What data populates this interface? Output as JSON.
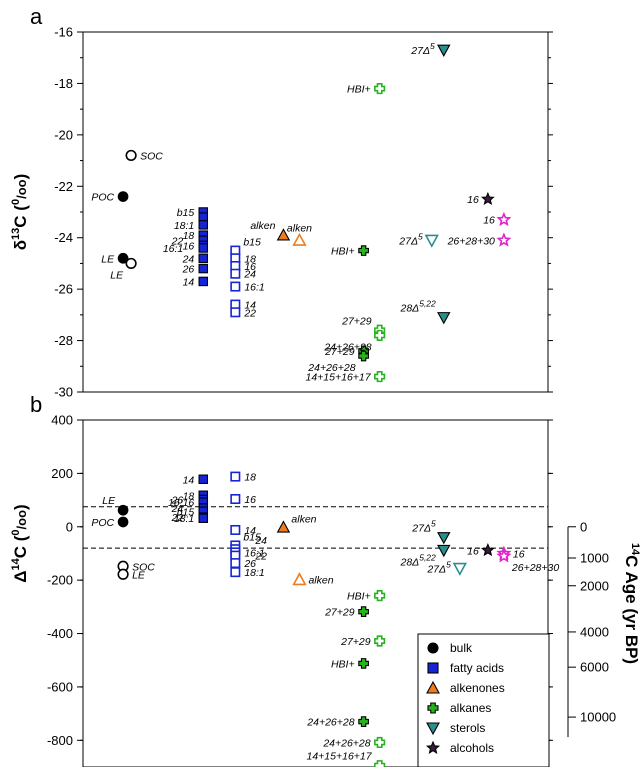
{
  "panel_letters": [
    "a",
    "b"
  ],
  "legend": [
    {
      "label": "bulk",
      "marker": "circle",
      "color": "#000000"
    },
    {
      "label": "fatty acids",
      "marker": "square",
      "color": "#1524d6"
    },
    {
      "label": "alkenones",
      "marker": "triangle-up",
      "color": "#f07b1a"
    },
    {
      "label": "alkanes",
      "marker": "cross",
      "color": "#27b21e"
    },
    {
      "label": "sterols",
      "marker": "triangle-down",
      "color": "#2a8f8c"
    },
    {
      "label": "alcohols",
      "marker": "star",
      "color": "#3b1b3f"
    }
  ],
  "chart_data": [
    {
      "type": "scatter",
      "panel": "a",
      "ylabel_main": "δ",
      "ylabel_sup": "13",
      "ylabel_rest": "C (",
      "ylabel_unit_sup": "0",
      "ylabel_unit_sub": "/oo",
      "ylabel_end": ")",
      "ylim": [
        -30,
        -16
      ],
      "yticks": [
        -30,
        -28,
        -26,
        -24,
        -22,
        -20,
        -18,
        -16
      ],
      "points": [
        {
          "x": 1.0,
          "y": -22.4,
          "marker": "circle",
          "filled": true,
          "color": "#000000",
          "label": "POC",
          "lpos": "left"
        },
        {
          "x": 1.0,
          "y": -24.8,
          "marker": "circle",
          "filled": true,
          "color": "#000000",
          "label": "LE",
          "lpos": "left"
        },
        {
          "x": 1.1,
          "y": -20.8,
          "marker": "circle",
          "filled": false,
          "color": "#000000",
          "label": "SOC",
          "lpos": "right"
        },
        {
          "x": 1.1,
          "y": -25.0,
          "marker": "circle",
          "filled": false,
          "color": "#000000",
          "label": "LE",
          "lpos": "left-below"
        },
        {
          "x": 2.0,
          "y": -23.0,
          "marker": "square",
          "filled": true,
          "color": "#1524d6",
          "label": "b15",
          "lpos": "left"
        },
        {
          "x": 2.0,
          "y": -23.2,
          "marker": "square",
          "filled": true,
          "color": "#1524d6",
          "label": "",
          "lpos": "left"
        },
        {
          "x": 2.0,
          "y": -23.5,
          "marker": "square",
          "filled": true,
          "color": "#1524d6",
          "label": "18:1",
          "lpos": "left"
        },
        {
          "x": 2.0,
          "y": -23.9,
          "marker": "square",
          "filled": true,
          "color": "#1524d6",
          "label": "18",
          "lpos": "left"
        },
        {
          "x": 2.0,
          "y": -24.1,
          "marker": "square",
          "filled": true,
          "color": "#1524d6",
          "label": "22",
          "lpos": "left-far"
        },
        {
          "x": 2.0,
          "y": -24.3,
          "marker": "square",
          "filled": true,
          "color": "#1524d6",
          "label": "16",
          "lpos": "left"
        },
        {
          "x": 2.0,
          "y": -24.4,
          "marker": "square",
          "filled": true,
          "color": "#1524d6",
          "label": "16:1",
          "lpos": "left-far"
        },
        {
          "x": 2.0,
          "y": -24.8,
          "marker": "square",
          "filled": true,
          "color": "#1524d6",
          "label": "24",
          "lpos": "left"
        },
        {
          "x": 2.0,
          "y": -25.2,
          "marker": "square",
          "filled": true,
          "color": "#1524d6",
          "label": "26",
          "lpos": "left"
        },
        {
          "x": 2.0,
          "y": -25.7,
          "marker": "square",
          "filled": true,
          "color": "#1524d6",
          "label": "14",
          "lpos": "left"
        },
        {
          "x": 2.4,
          "y": -24.5,
          "marker": "square",
          "filled": false,
          "color": "#1524d6",
          "label": "b15",
          "lpos": "right-up"
        },
        {
          "x": 2.4,
          "y": -24.8,
          "marker": "square",
          "filled": false,
          "color": "#1524d6",
          "label": "18",
          "lpos": "right"
        },
        {
          "x": 2.4,
          "y": -25.1,
          "marker": "square",
          "filled": false,
          "color": "#1524d6",
          "label": "16",
          "lpos": "right"
        },
        {
          "x": 2.4,
          "y": -25.4,
          "marker": "square",
          "filled": false,
          "color": "#1524d6",
          "label": "24",
          "lpos": "right"
        },
        {
          "x": 2.4,
          "y": -25.9,
          "marker": "square",
          "filled": false,
          "color": "#1524d6",
          "label": "16:1",
          "lpos": "right"
        },
        {
          "x": 2.4,
          "y": -26.6,
          "marker": "square",
          "filled": false,
          "color": "#1524d6",
          "label": "14",
          "lpos": "right"
        },
        {
          "x": 2.4,
          "y": -26.9,
          "marker": "square",
          "filled": false,
          "color": "#1524d6",
          "label": "22",
          "lpos": "right"
        },
        {
          "x": 3.0,
          "y": -23.9,
          "marker": "triangle-up",
          "filled": true,
          "color": "#f07b1a",
          "label": "alken",
          "lpos": "left-up"
        },
        {
          "x": 3.2,
          "y": -24.1,
          "marker": "triangle-up",
          "filled": false,
          "color": "#f07b1a",
          "label": "alken",
          "lpos": "up"
        },
        {
          "x": 4.0,
          "y": -24.5,
          "marker": "cross",
          "filled": true,
          "color": "#27b21e",
          "label": "HBI+",
          "lpos": "left"
        },
        {
          "x": 4.0,
          "y": -28.4,
          "marker": "cross",
          "filled": true,
          "color": "#27b21e",
          "label": "27+29",
          "lpos": "left"
        },
        {
          "x": 4.0,
          "y": -28.6,
          "marker": "cross",
          "filled": true,
          "color": "#27b21e",
          "label": "24+26+28",
          "lpos": "left-below"
        },
        {
          "x": 4.2,
          "y": -18.2,
          "marker": "cross",
          "filled": false,
          "color": "#27b21e",
          "label": "HBI+",
          "lpos": "left"
        },
        {
          "x": 4.2,
          "y": -27.6,
          "marker": "cross",
          "filled": false,
          "color": "#27b21e",
          "label": "27+29",
          "lpos": "left-up"
        },
        {
          "x": 4.2,
          "y": -27.8,
          "marker": "cross",
          "filled": false,
          "color": "#27b21e",
          "label": "24+26+28",
          "lpos": "left-below"
        },
        {
          "x": 4.2,
          "y": -29.4,
          "marker": "cross",
          "filled": false,
          "color": "#27b21e",
          "label": "14+15+16+17",
          "lpos": "left"
        },
        {
          "x": 5.0,
          "y": -16.7,
          "marker": "triangle-down",
          "filled": true,
          "color": "#2a8f8c",
          "label": "27Δ5",
          "lpos": "left"
        },
        {
          "x": 5.0,
          "y": -27.1,
          "marker": "triangle-down",
          "filled": true,
          "color": "#2a8f8c",
          "label": "28Δ5,22",
          "lpos": "left-up"
        },
        {
          "x": 4.85,
          "y": -24.1,
          "marker": "triangle-down",
          "filled": false,
          "color": "#2a8f8c",
          "label": "27Δ5",
          "lpos": "left"
        },
        {
          "x": 5.55,
          "y": -22.5,
          "marker": "star",
          "filled": true,
          "color": "#3b1b3f",
          "label": "16",
          "lpos": "left"
        },
        {
          "x": 5.75,
          "y": -23.3,
          "marker": "star",
          "filled": false,
          "color": "#e223c9",
          "label": "16",
          "lpos": "left"
        },
        {
          "x": 5.75,
          "y": -24.1,
          "marker": "star",
          "filled": false,
          "color": "#e223c9",
          "label": "26+28+30",
          "lpos": "left"
        }
      ]
    },
    {
      "type": "scatter",
      "panel": "b",
      "ylabel_main": "Δ",
      "ylabel_sup": "14",
      "ylabel_rest": "C (",
      "ylabel_unit_sup": "0",
      "ylabel_unit_sub": "/oo",
      "ylabel_end": ")",
      "ylim": [
        -900,
        400
      ],
      "yticks": [
        -800,
        -600,
        -400,
        -200,
        0,
        200,
        400
      ],
      "right_axis_label_main": "C Age (yr BP)",
      "right_axis_label_sup": "14",
      "right_axis_ticks": [
        {
          "label": "0",
          "delta": 0
        },
        {
          "label": "1000",
          "delta": -117
        },
        {
          "label": "2000",
          "delta": -221
        },
        {
          "label": "4000",
          "delta": -394
        },
        {
          "label": "6000",
          "delta": -526
        },
        {
          "label": "10000",
          "delta": -713
        }
      ],
      "hlines": [
        75,
        -80
      ],
      "points": [
        {
          "x": 1.0,
          "y": 62,
          "marker": "circle",
          "filled": true,
          "color": "#000000",
          "label": "LE",
          "lpos": "left-up"
        },
        {
          "x": 1.0,
          "y": 18,
          "marker": "circle",
          "filled": true,
          "color": "#000000",
          "label": "POC",
          "lpos": "left"
        },
        {
          "x": 1.0,
          "y": -148,
          "marker": "circle",
          "filled": false,
          "color": "#000000",
          "label": "SOC",
          "lpos": "right"
        },
        {
          "x": 1.0,
          "y": -178,
          "marker": "circle",
          "filled": false,
          "color": "#000000",
          "label": "LE",
          "lpos": "right"
        },
        {
          "x": 2.0,
          "y": 178,
          "marker": "square",
          "filled": true,
          "color": "#1524d6",
          "label": "14",
          "lpos": "left"
        },
        {
          "x": 2.0,
          "y": 118,
          "marker": "square",
          "filled": true,
          "color": "#1524d6",
          "label": "18",
          "lpos": "left"
        },
        {
          "x": 2.0,
          "y": 102,
          "marker": "square",
          "filled": true,
          "color": "#1524d6",
          "label": "26",
          "lpos": "left-far"
        },
        {
          "x": 2.0,
          "y": 92,
          "marker": "square",
          "filled": true,
          "color": "#1524d6",
          "label": "16:16",
          "lpos": "left"
        },
        {
          "x": 2.0,
          "y": 70,
          "marker": "square",
          "filled": true,
          "color": "#1524d6",
          "label": "24",
          "lpos": "left-far"
        },
        {
          "x": 2.0,
          "y": 58,
          "marker": "square",
          "filled": true,
          "color": "#1524d6",
          "label": "b15",
          "lpos": "left"
        },
        {
          "x": 2.0,
          "y": 36,
          "marker": "square",
          "filled": true,
          "color": "#1524d6",
          "label": "22",
          "lpos": "left-far"
        },
        {
          "x": 2.0,
          "y": 32,
          "marker": "square",
          "filled": true,
          "color": "#1524d6",
          "label": "18:1",
          "lpos": "left"
        },
        {
          "x": 2.4,
          "y": 188,
          "marker": "square",
          "filled": false,
          "color": "#1524d6",
          "label": "18",
          "lpos": "right"
        },
        {
          "x": 2.4,
          "y": 104,
          "marker": "square",
          "filled": false,
          "color": "#1524d6",
          "label": "16",
          "lpos": "right"
        },
        {
          "x": 2.4,
          "y": -12,
          "marker": "square",
          "filled": false,
          "color": "#1524d6",
          "label": "14",
          "lpos": "right"
        },
        {
          "x": 2.4,
          "y": -70,
          "marker": "square",
          "filled": false,
          "color": "#1524d6",
          "label": "b15",
          "lpos": "right-up"
        },
        {
          "x": 2.4,
          "y": -84,
          "marker": "square",
          "filled": false,
          "color": "#1524d6",
          "label": "24",
          "lpos": "right-up-far"
        },
        {
          "x": 2.4,
          "y": -96,
          "marker": "square",
          "filled": false,
          "color": "#1524d6",
          "label": "16:1",
          "lpos": "right"
        },
        {
          "x": 2.4,
          "y": -108,
          "marker": "square",
          "filled": false,
          "color": "#1524d6",
          "label": "22",
          "lpos": "right-far"
        },
        {
          "x": 2.4,
          "y": -136,
          "marker": "square",
          "filled": false,
          "color": "#1524d6",
          "label": "26",
          "lpos": "right"
        },
        {
          "x": 2.4,
          "y": -170,
          "marker": "square",
          "filled": false,
          "color": "#1524d6",
          "label": "18:1",
          "lpos": "right"
        },
        {
          "x": 3.0,
          "y": -2,
          "marker": "triangle-up",
          "filled": true,
          "color": "#f07b1a",
          "label": "alken",
          "lpos": "right-up"
        },
        {
          "x": 3.2,
          "y": -198,
          "marker": "triangle-up",
          "filled": false,
          "color": "#f07b1a",
          "label": "alken",
          "lpos": "right"
        },
        {
          "x": 4.0,
          "y": -318,
          "marker": "cross",
          "filled": true,
          "color": "#27b21e",
          "label": "27+29",
          "lpos": "left"
        },
        {
          "x": 4.0,
          "y": -512,
          "marker": "cross",
          "filled": true,
          "color": "#27b21e",
          "label": "HBI+",
          "lpos": "left"
        },
        {
          "x": 4.0,
          "y": -730,
          "marker": "cross",
          "filled": true,
          "color": "#27b21e",
          "label": "24+26+28",
          "lpos": "left"
        },
        {
          "x": 4.2,
          "y": -258,
          "marker": "cross",
          "filled": false,
          "color": "#27b21e",
          "label": "HBI+",
          "lpos": "left"
        },
        {
          "x": 4.2,
          "y": -428,
          "marker": "cross",
          "filled": false,
          "color": "#27b21e",
          "label": "27+29",
          "lpos": "left"
        },
        {
          "x": 4.2,
          "y": -808,
          "marker": "cross",
          "filled": false,
          "color": "#27b21e",
          "label": "24+26+28",
          "lpos": "left"
        },
        {
          "x": 4.2,
          "y": -895,
          "marker": "cross",
          "filled": false,
          "color": "#27b21e",
          "label": "14+15+16+17",
          "lpos": "left-up"
        },
        {
          "x": 5.0,
          "y": -40,
          "marker": "triangle-down",
          "filled": true,
          "color": "#2a8f8c",
          "label": "27Δ5",
          "lpos": "left-up"
        },
        {
          "x": 5.0,
          "y": -88,
          "marker": "triangle-down",
          "filled": true,
          "color": "#2a8f8c",
          "label": "28Δ5,22",
          "lpos": "left-below"
        },
        {
          "x": 5.2,
          "y": -156,
          "marker": "triangle-down",
          "filled": false,
          "color": "#2a8f8c",
          "label": "27Δ5",
          "lpos": "left"
        },
        {
          "x": 5.55,
          "y": -88,
          "marker": "star",
          "filled": true,
          "color": "#3b1b3f",
          "label": "16",
          "lpos": "left"
        },
        {
          "x": 5.75,
          "y": -100,
          "marker": "star",
          "filled": false,
          "color": "#e223c9",
          "label": "16",
          "lpos": "right"
        },
        {
          "x": 5.75,
          "y": -110,
          "marker": "star",
          "filled": false,
          "color": "#e223c9",
          "label": "26+28+30",
          "lpos": "right-below"
        }
      ]
    }
  ]
}
